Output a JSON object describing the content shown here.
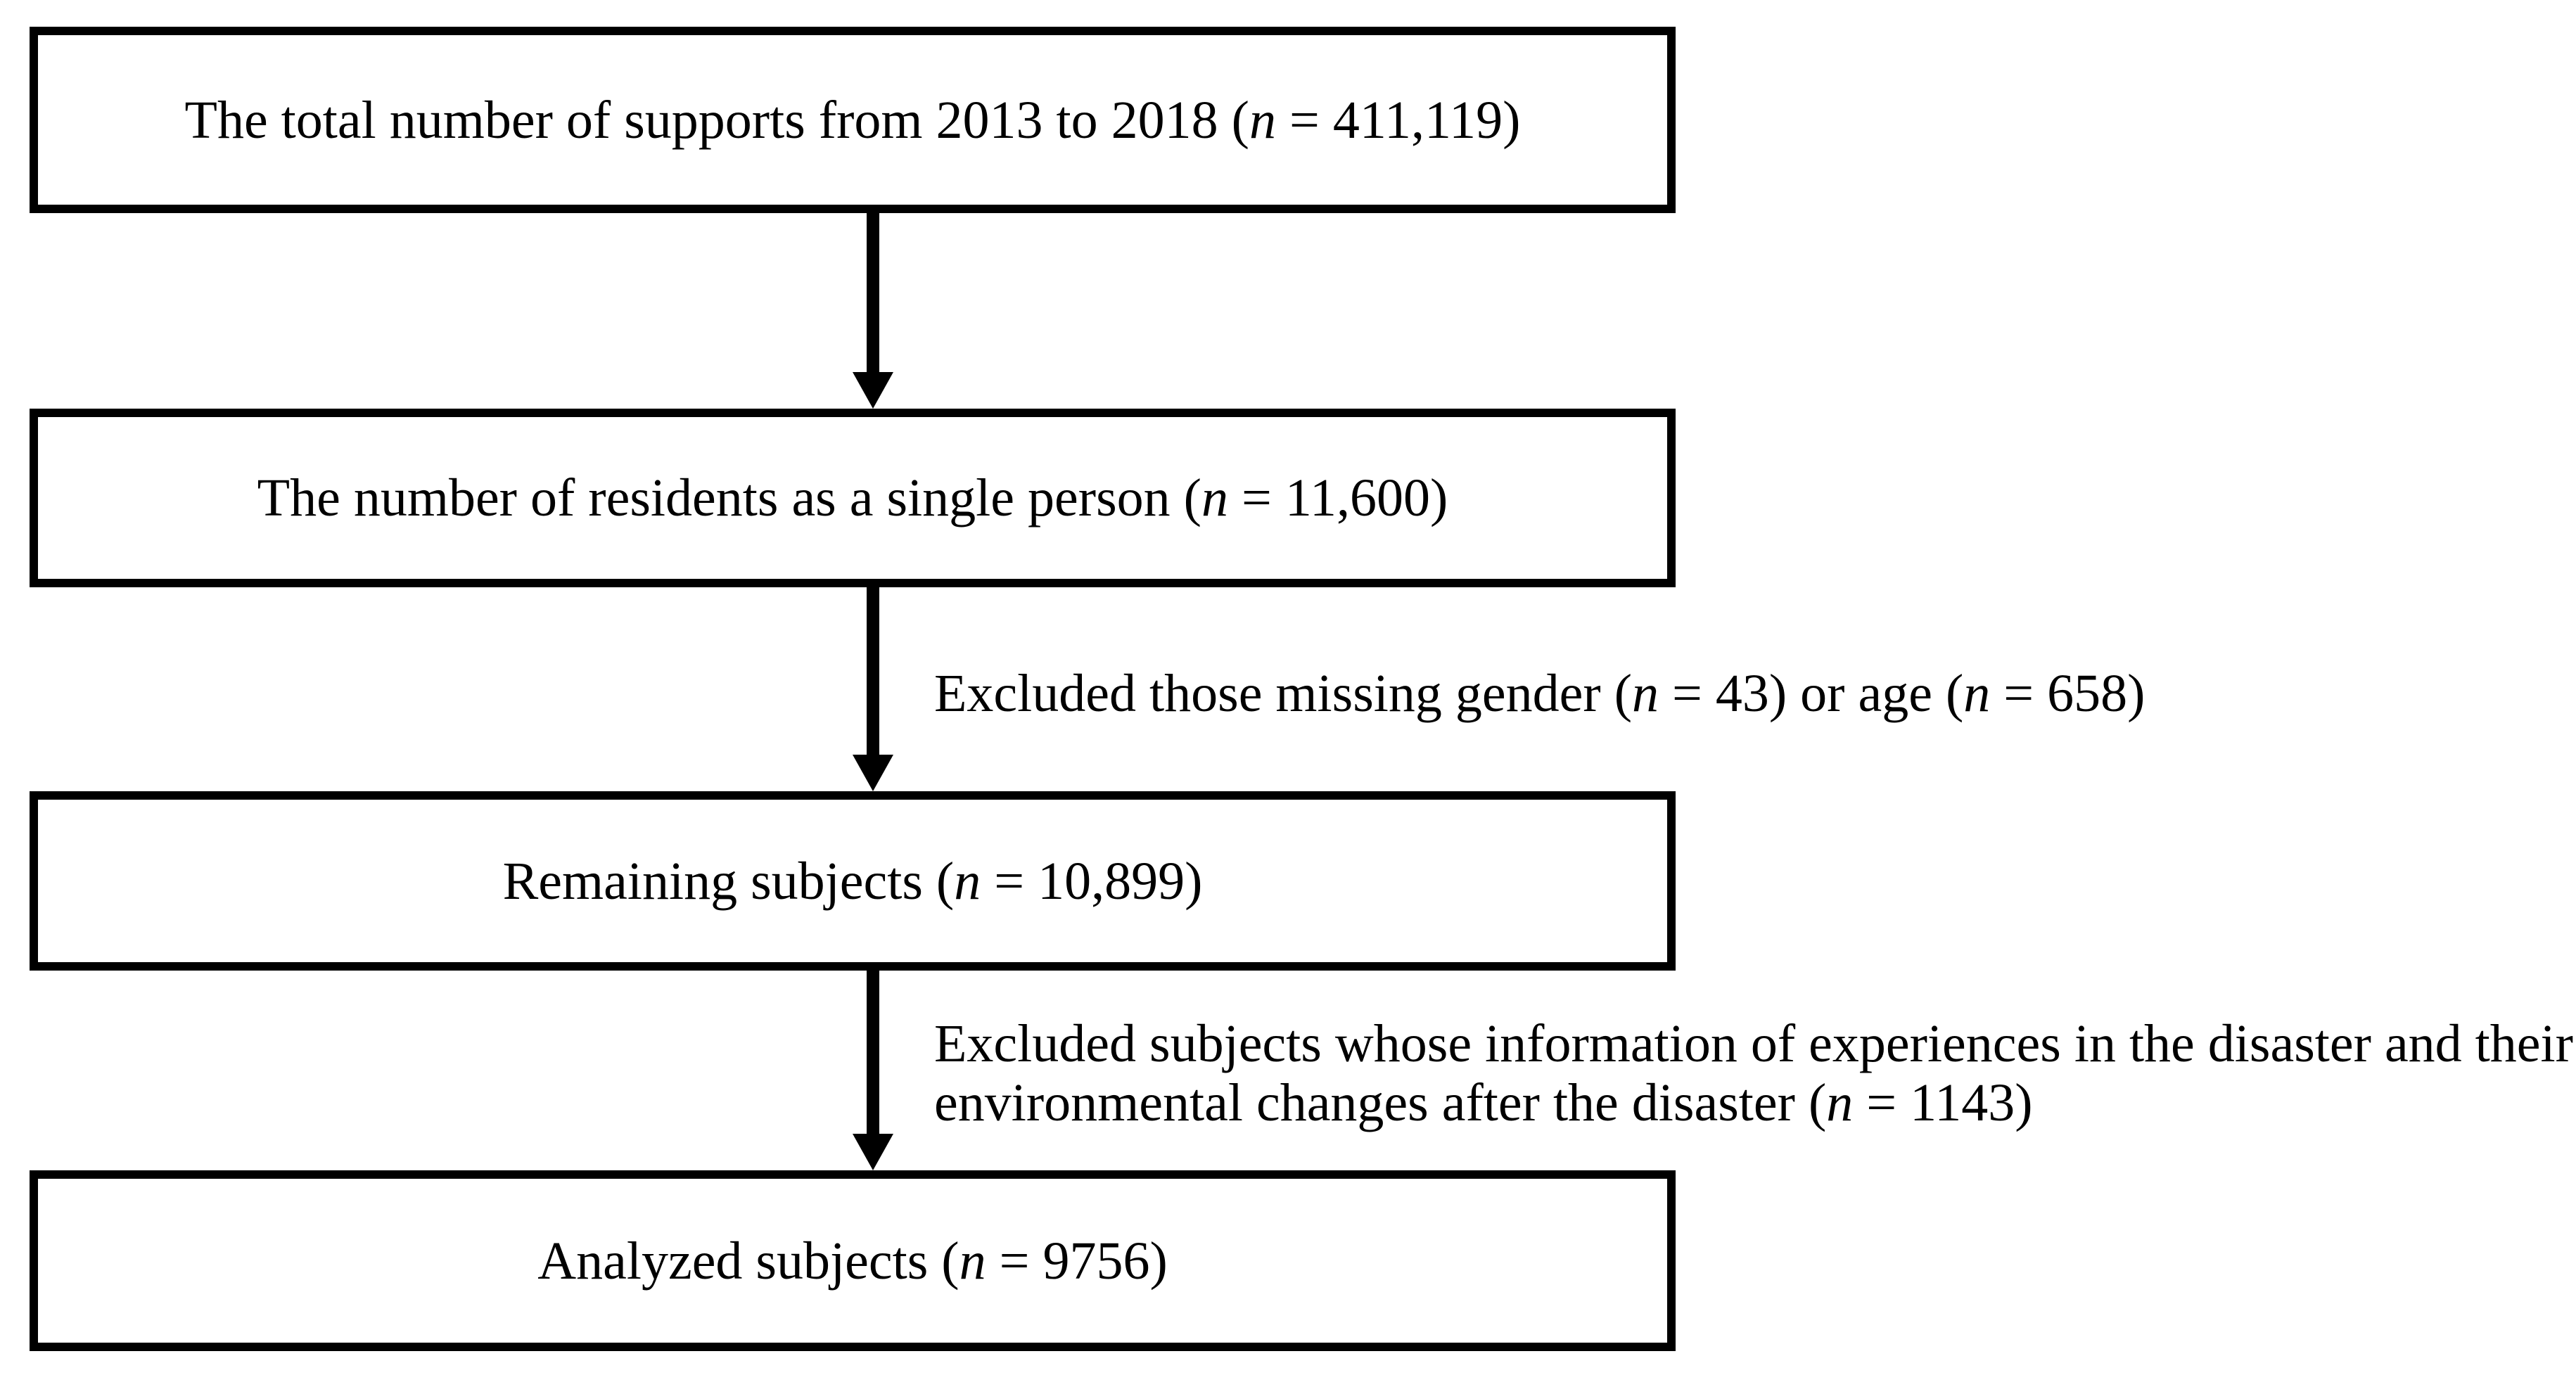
{
  "figure": {
    "kind": "participant-flow-diagram",
    "colors": {
      "background": "#ffffff",
      "box_border": "#000000",
      "box_fill": "#ffffff",
      "arrow": "#000000",
      "text": "#000000"
    }
  },
  "boxes": [
    {
      "name": "total-supports",
      "n_value": "411,119",
      "segments": [
        {
          "t": "The total number of supports from 2013 to 2018 ("
        },
        {
          "t": "n",
          "i": true
        },
        {
          "t": " = 411,119)"
        }
      ]
    },
    {
      "name": "single-person-residents",
      "n_value": "11,600",
      "segments": [
        {
          "t": "The number of residents as a single person ("
        },
        {
          "t": "n",
          "i": true
        },
        {
          "t": " = 11,600)"
        }
      ]
    },
    {
      "name": "remaining-subjects",
      "n_value": "10,899",
      "segments": [
        {
          "t": "Remaining subjects ("
        },
        {
          "t": "n",
          "i": true
        },
        {
          "t": " = 10,899)"
        }
      ]
    },
    {
      "name": "analyzed-subjects",
      "n_value": "9756",
      "segments": [
        {
          "t": "Analyzed subjects ("
        },
        {
          "t": "n",
          "i": true
        },
        {
          "t": " = 9756)"
        }
      ]
    }
  ],
  "exclusions": [
    {
      "name": "excluded-missing-gender-or-age",
      "n_values": [
        "43",
        "658"
      ],
      "lines": [
        [
          {
            "t": "Excluded those missing gender ("
          },
          {
            "t": "n",
            "i": true
          },
          {
            "t": " = 43) or age ("
          },
          {
            "t": "n",
            "i": true
          },
          {
            "t": " = 658)"
          }
        ]
      ]
    },
    {
      "name": "excluded-missing-disaster-information",
      "n_values": [
        "1143"
      ],
      "lines": [
        [
          {
            "t": "Excluded subjects whose information of experiences in the disaster and their"
          }
        ],
        [
          {
            "t": "environmental changes after the disaster ("
          },
          {
            "t": "n",
            "i": true
          },
          {
            "t": " = 1143)"
          }
        ]
      ]
    }
  ]
}
